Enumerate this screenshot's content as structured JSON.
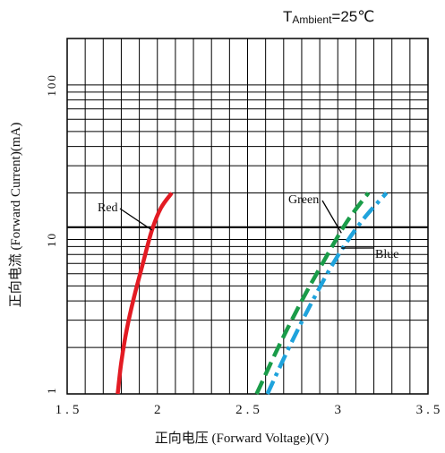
{
  "chart_data": {
    "type": "line",
    "annotation": {
      "prefix": "T",
      "sub": "Ambient",
      "suffix": "=25℃"
    },
    "xlabel": "正向电压 (Forward Voltage)(V)",
    "ylabel": "正向电流 (Forward Current)(mA)",
    "xlim": [
      1.5,
      3.5
    ],
    "ylim": [
      1,
      200
    ],
    "yscale": "log",
    "xticks": [
      {
        "value": 1.5,
        "label": "1.5"
      },
      {
        "value": 2,
        "label": "2"
      },
      {
        "value": 2.5,
        "label": "2.5"
      },
      {
        "value": 3,
        "label": "3"
      },
      {
        "value": 3.5,
        "label": "3.5"
      }
    ],
    "yticks": [
      {
        "value": 1,
        "label": "1"
      },
      {
        "value": 10,
        "label": "10"
      },
      {
        "value": 100,
        "label": "100"
      }
    ],
    "grid": true,
    "series": [
      {
        "name": "Red",
        "color": "#e31b23",
        "style": "solid",
        "x": [
          1.78,
          1.8,
          1.83,
          1.87,
          1.92,
          1.97,
          2.02,
          2.08
        ],
        "y": [
          1,
          1.6,
          2.6,
          4.2,
          7.0,
          11.5,
          16.0,
          20.0
        ]
      },
      {
        "name": "Green",
        "color": "#1a9c49",
        "style": "dashed",
        "x": [
          2.55,
          2.67,
          2.8,
          2.93,
          3.05,
          3.17
        ],
        "y": [
          1,
          2.0,
          4.0,
          7.5,
          13.0,
          20.0
        ]
      },
      {
        "name": "Blue",
        "color": "#1fa3dc",
        "style": "dashdot",
        "x": [
          2.61,
          2.73,
          2.86,
          2.99,
          3.13,
          3.27
        ],
        "y": [
          1,
          2.0,
          4.0,
          7.5,
          13.0,
          20.0
        ]
      }
    ],
    "callouts": [
      {
        "text": "Red",
        "series": 0,
        "anchor_x": 1.97,
        "anchor_y": 11.5
      },
      {
        "text": "Green",
        "series": 1,
        "anchor_x": 3.02,
        "anchor_y": 11.0
      },
      {
        "text": "Blue",
        "series": 2,
        "anchor_x": 3.02,
        "anchor_y": 8.8
      }
    ]
  }
}
